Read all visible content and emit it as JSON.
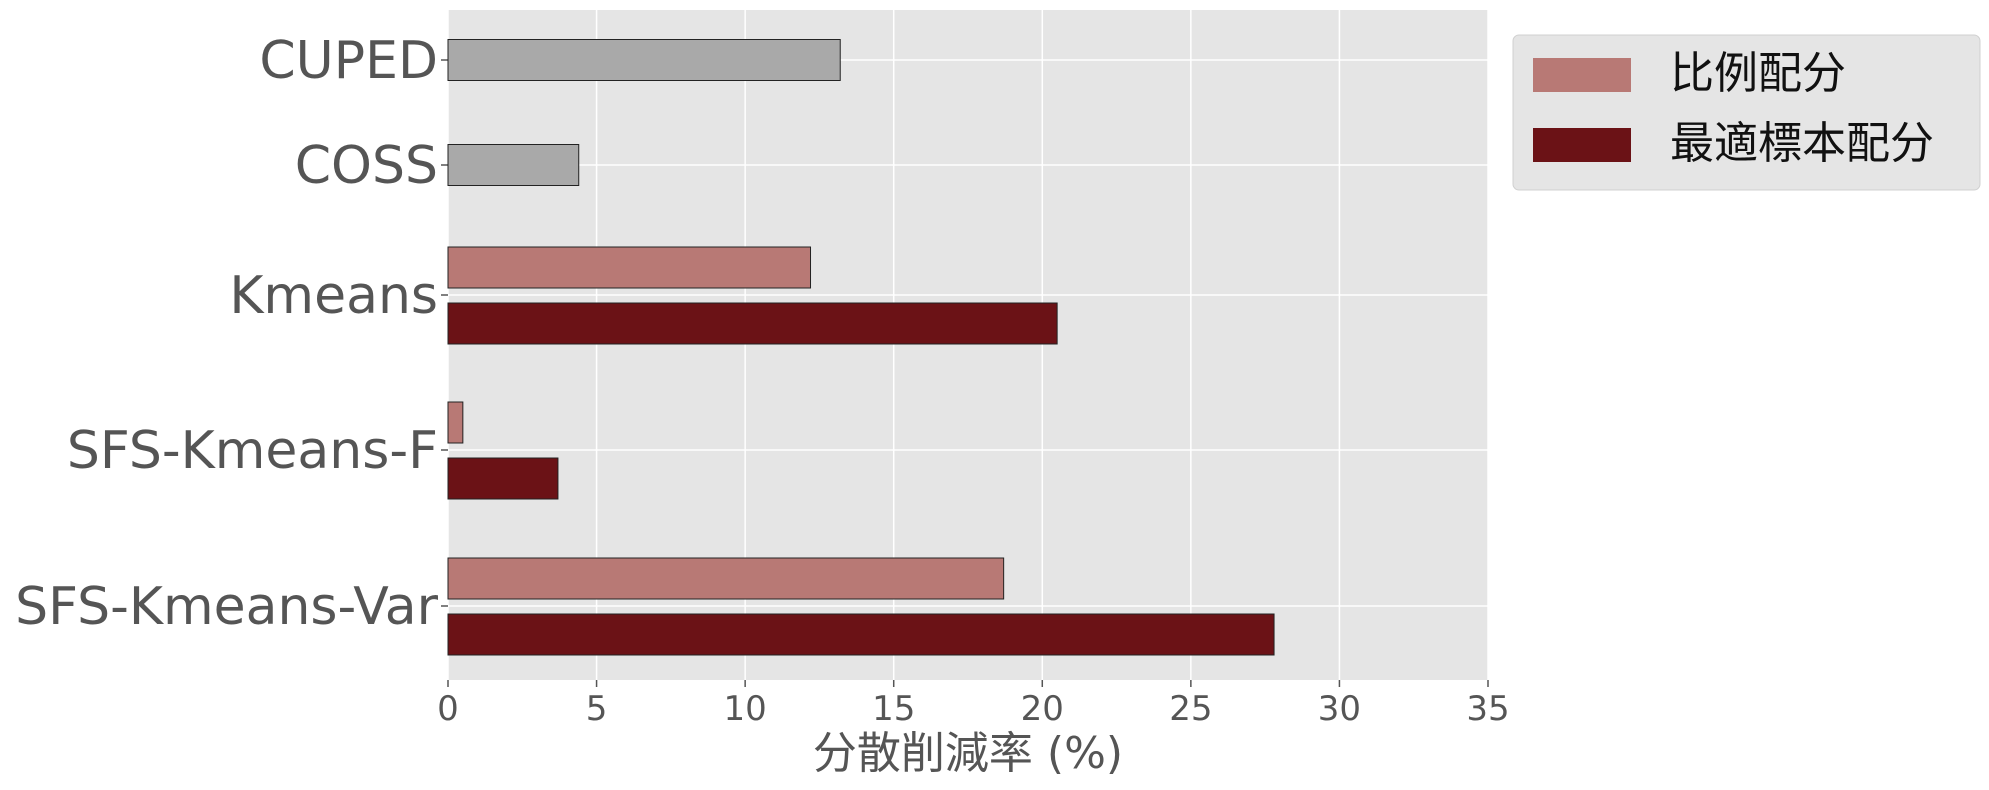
{
  "chart_data": {
    "type": "bar",
    "orientation": "horizontal",
    "categories": [
      "CUPED",
      "COSS",
      "Kmeans",
      "SFS-Kmeans-F",
      "SFS-Kmeans-Var"
    ],
    "baseline_series": {
      "color": "#a9a9a9",
      "values": [
        13.2,
        4.4,
        null,
        null,
        null
      ]
    },
    "series": [
      {
        "name": "比例配分",
        "color": "#b87975",
        "values": [
          null,
          null,
          12.2,
          0.5,
          18.7
        ]
      },
      {
        "name": "最適標本配分",
        "color": "#6b1216",
        "values": [
          null,
          null,
          20.5,
          3.7,
          27.8
        ]
      }
    ],
    "xlabel": "分散削減率 (%)",
    "ylabel": "",
    "xlim": [
      0,
      35
    ],
    "xticks": [
      "0",
      "5",
      "10",
      "15",
      "20",
      "25",
      "30",
      "35"
    ],
    "grid": true,
    "legend_position": "outside-top-right",
    "plot_background": "#e5e5e5",
    "grid_color": "#ffffff"
  }
}
